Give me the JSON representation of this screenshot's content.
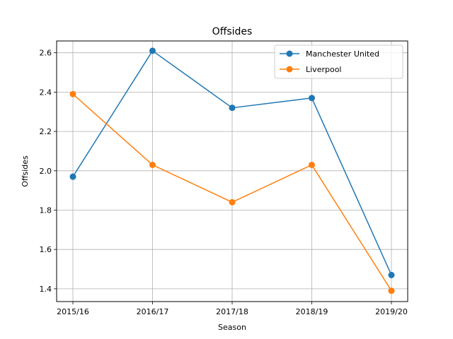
{
  "chart_data": {
    "type": "line",
    "title": "Offsides",
    "xlabel": "Season",
    "ylabel": "Offsides",
    "categories": [
      "2015/16",
      "2016/17",
      "2017/18",
      "2018/19",
      "2019/20"
    ],
    "ylim": [
      1.335,
      2.66
    ],
    "yticks": [
      1.4,
      1.6,
      1.8,
      2.0,
      2.2,
      2.4,
      2.6
    ],
    "ytick_labels": [
      "1.4",
      "1.6",
      "1.8",
      "2.0",
      "2.2",
      "2.4",
      "2.6"
    ],
    "grid": true,
    "legend_position": "top-right",
    "series": [
      {
        "name": "Manchester United",
        "color": "#1f77b4",
        "values": [
          1.97,
          2.61,
          2.32,
          2.37,
          1.47
        ]
      },
      {
        "name": "Liverpool",
        "color": "#ff7f0e",
        "values": [
          2.39,
          2.03,
          1.84,
          2.03,
          1.39
        ]
      }
    ]
  }
}
